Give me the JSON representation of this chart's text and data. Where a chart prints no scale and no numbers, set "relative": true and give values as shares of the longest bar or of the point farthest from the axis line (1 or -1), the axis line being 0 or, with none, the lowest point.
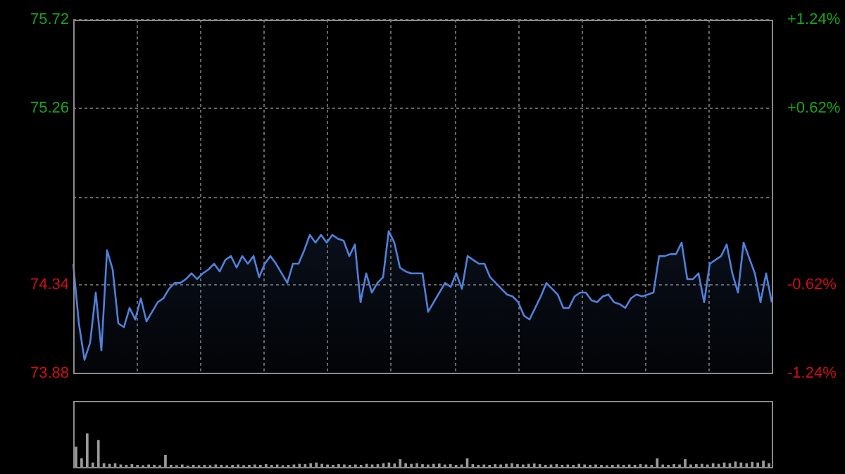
{
  "chart_data": [
    {
      "type": "area",
      "categories": [
        null,
        null,
        null,
        null,
        null,
        null,
        null,
        null,
        null,
        null,
        null,
        null,
        null,
        null,
        null,
        null,
        null,
        null,
        null,
        null,
        null,
        null,
        null,
        null,
        null,
        null,
        null,
        null,
        null,
        null,
        null,
        null,
        null,
        null,
        null,
        null,
        null,
        null,
        null,
        null,
        null,
        null,
        null,
        null,
        null,
        null,
        null,
        null,
        null,
        null,
        null,
        null,
        null,
        null,
        null,
        null,
        null,
        null,
        null,
        null,
        null,
        null,
        null,
        null,
        null,
        null,
        null,
        null,
        null,
        null,
        null,
        null,
        null,
        null,
        null,
        null,
        null,
        null,
        null,
        null,
        null,
        null,
        null,
        null,
        null,
        null,
        null,
        null,
        null,
        null,
        null,
        null,
        null,
        null,
        null,
        null,
        null,
        null,
        null,
        null,
        null,
        null,
        null,
        null,
        null,
        null,
        null,
        null,
        null,
        null,
        null,
        null,
        null,
        null,
        null,
        null,
        null,
        null,
        null,
        null,
        null,
        null,
        null,
        null,
        null
      ],
      "values": [
        74.45,
        74.14,
        73.95,
        74.04,
        74.3,
        74.0,
        74.52,
        74.42,
        74.14,
        74.12,
        74.22,
        74.16,
        74.27,
        74.15,
        74.2,
        74.25,
        74.27,
        74.32,
        74.35,
        74.35,
        74.37,
        74.4,
        74.37,
        74.4,
        74.42,
        74.45,
        74.41,
        74.47,
        74.49,
        74.43,
        74.49,
        74.45,
        74.49,
        74.38,
        74.45,
        74.49,
        74.45,
        74.4,
        74.35,
        74.45,
        74.45,
        74.52,
        74.6,
        74.56,
        74.6,
        74.56,
        74.6,
        74.58,
        74.57,
        74.49,
        74.55,
        74.25,
        74.4,
        74.3,
        74.35,
        74.38,
        74.62,
        74.56,
        74.43,
        74.41,
        74.4,
        74.4,
        74.4,
        74.2,
        74.25,
        74.3,
        74.35,
        74.33,
        74.4,
        74.32,
        74.49,
        74.47,
        74.45,
        74.45,
        74.38,
        74.35,
        74.32,
        74.29,
        74.28,
        74.25,
        74.18,
        74.16,
        74.22,
        74.28,
        74.35,
        74.32,
        74.29,
        74.22,
        74.22,
        74.28,
        74.3,
        74.3,
        74.26,
        74.25,
        74.28,
        74.29,
        74.25,
        74.24,
        74.22,
        74.27,
        74.29,
        74.28,
        74.29,
        74.3,
        74.49,
        74.49,
        74.5,
        74.5,
        74.56,
        74.37,
        74.37,
        74.4,
        74.25,
        74.45,
        74.47,
        74.49,
        74.55,
        74.4,
        74.3,
        74.56,
        74.48,
        74.4,
        74.25,
        74.4,
        74.25
      ],
      "color": "#4f82dc",
      "ylim": [
        73.88,
        75.72
      ],
      "yticks": [
        73.88,
        74.34,
        75.26,
        75.72
      ],
      "y2lim": [
        -1.24,
        1.24
      ],
      "y2ticks": [
        {
          "value": -1.24,
          "label": "-1.24%"
        },
        {
          "value": -0.62,
          "label": "-0.62%"
        },
        {
          "value": 0.62,
          "label": "+0.62%"
        },
        {
          "value": 1.24,
          "label": "+1.24%"
        }
      ],
      "ref_lines": [
        {
          "axis": "y",
          "value": 74.8
        }
      ],
      "grid": true
    },
    {
      "type": "bar",
      "relative": true,
      "categories": [
        null,
        null,
        null,
        null,
        null,
        null,
        null,
        null,
        null,
        null,
        null,
        null,
        null,
        null,
        null,
        null,
        null,
        null,
        null,
        null,
        null,
        null,
        null,
        null,
        null,
        null,
        null,
        null,
        null,
        null,
        null,
        null,
        null,
        null,
        null,
        null,
        null,
        null,
        null,
        null,
        null,
        null,
        null,
        null,
        null,
        null,
        null,
        null,
        null,
        null,
        null,
        null,
        null,
        null,
        null,
        null,
        null,
        null,
        null,
        null,
        null,
        null,
        null,
        null,
        null,
        null,
        null,
        null,
        null,
        null,
        null,
        null,
        null,
        null,
        null,
        null,
        null,
        null,
        null,
        null,
        null,
        null,
        null,
        null,
        null,
        null,
        null,
        null,
        null,
        null,
        null,
        null,
        null,
        null,
        null,
        null,
        null,
        null,
        null,
        null,
        null,
        null,
        null,
        null,
        null,
        null,
        null,
        null,
        null,
        null,
        null,
        null,
        null,
        null,
        null,
        null,
        null,
        null,
        null,
        null,
        null,
        null,
        null,
        null,
        null
      ],
      "values": [
        0.6,
        0.25,
        1,
        0.12,
        0.8,
        0.1,
        0.08,
        0.1,
        0.06,
        0.05,
        0.07,
        0.05,
        0.04,
        0.06,
        0.05,
        0.04,
        0.35,
        0.05,
        0.04,
        0.06,
        0.03,
        0.05,
        0.04,
        0.05,
        0.04,
        0.06,
        0.05,
        0.04,
        0.05,
        0.06,
        0.04,
        0.05,
        0.06,
        0.05,
        0.07,
        0.05,
        0.06,
        0.04,
        0.05,
        0.06,
        0.08,
        0.07,
        0.1,
        0.12,
        0.08,
        0.06,
        0.05,
        0.07,
        0.06,
        0.05,
        0.06,
        0.05,
        0.08,
        0.06,
        0.07,
        0.1,
        0.12,
        0.09,
        0.22,
        0.1,
        0.08,
        0.1,
        0.07,
        0.06,
        0.08,
        0.09,
        0.06,
        0.07,
        0.05,
        0.06,
        0.25,
        0.07,
        0.05,
        0.06,
        0.05,
        0.07,
        0.06,
        0.08,
        0.1,
        0.07,
        0.06,
        0.08,
        0.09,
        0.07,
        0.05,
        0.06,
        0.07,
        0.05,
        0.06,
        0.05,
        0.08,
        0.06,
        0.05,
        0.06,
        0.05,
        0.04,
        0.05,
        0.06,
        0.05,
        0.06,
        0.05,
        0.07,
        0.06,
        0.05,
        0.25,
        0.06,
        0.05,
        0.07,
        0.06,
        0.22,
        0.06,
        0.07,
        0.08,
        0.06,
        0.1,
        0.08,
        0.12,
        0.1,
        0.15,
        0.12,
        0.1,
        0.14,
        0.12,
        0.18,
        0.1
      ],
      "color": "#9a9a9a"
    }
  ]
}
